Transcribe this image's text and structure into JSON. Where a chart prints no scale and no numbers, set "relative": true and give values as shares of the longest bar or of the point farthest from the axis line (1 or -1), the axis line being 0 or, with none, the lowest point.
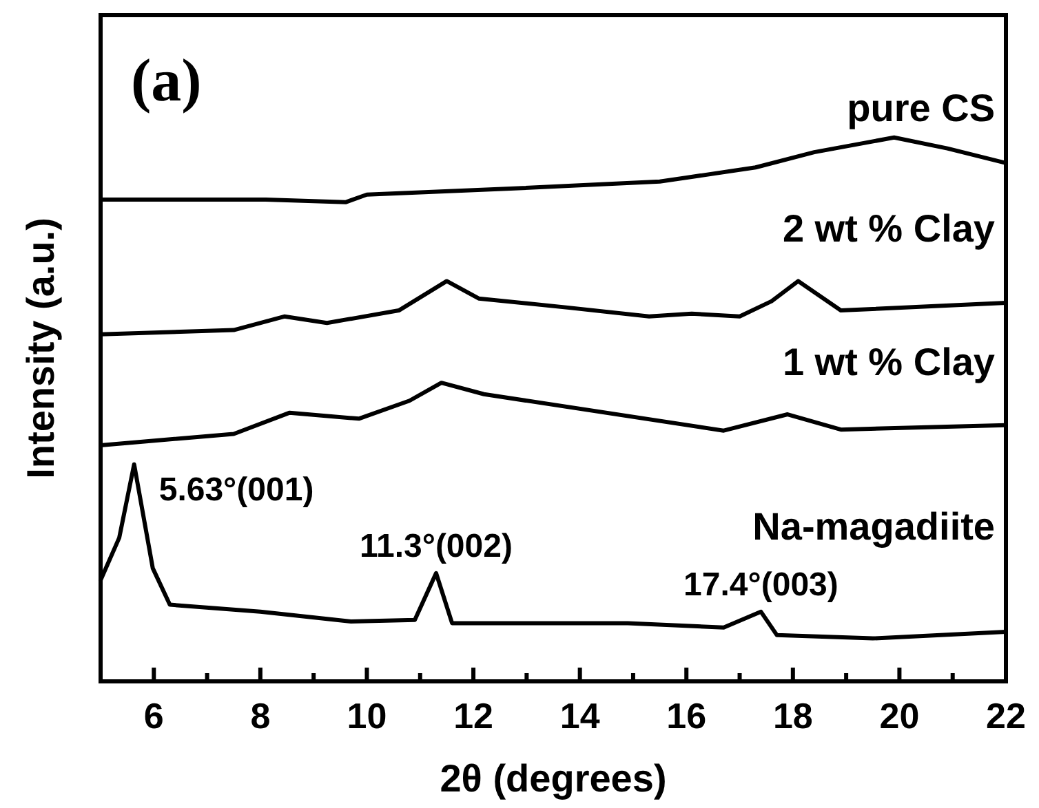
{
  "chart_data": {
    "type": "line",
    "relative": true,
    "xlabel": "2θ (degrees)",
    "ylabel": "Intensity (a.u.)",
    "xlim": [
      5,
      22
    ],
    "xticks": [
      {
        "value": 5,
        "label": null
      },
      6,
      {
        "value": 7,
        "label": null
      },
      8,
      {
        "value": 9,
        "label": null
      },
      10,
      {
        "value": 11,
        "label": null
      },
      12,
      {
        "value": 13,
        "label": null
      },
      14,
      {
        "value": 15,
        "label": null
      },
      16,
      {
        "value": 17,
        "label": null
      },
      18,
      {
        "value": 19,
        "label": null
      },
      20,
      {
        "value": 21,
        "label": null
      },
      22
    ],
    "marker": "none",
    "line_style": "solid",
    "series": [
      {
        "name": "pure CS",
        "color": "#000000",
        "x": [
          5,
          8.1,
          9.6,
          10.0,
          12.7,
          15.5,
          17.3,
          18.4,
          19.9,
          20.9,
          22
        ],
        "values": [
          0.886,
          0.886,
          0.881,
          0.895,
          0.906,
          0.919,
          0.945,
          0.973,
          1,
          0.98,
          0.953
        ]
      },
      {
        "name": "2 wt % Clay",
        "color": "#000000",
        "x": [
          5,
          7.5,
          8.45,
          9.25,
          10.6,
          11.5,
          12.1,
          13.8,
          15.3,
          16.1,
          17.0,
          17.6,
          18.1,
          18.9,
          22
        ],
        "values": [
          0.638,
          0.646,
          0.671,
          0.659,
          0.682,
          0.736,
          0.704,
          0.687,
          0.671,
          0.676,
          0.671,
          0.699,
          0.736,
          0.682,
          0.696
        ]
      },
      {
        "name": "1 wt % Clay",
        "color": "#000000",
        "x": [
          5,
          7.5,
          8.55,
          9.85,
          10.8,
          11.4,
          12.2,
          16.7,
          17.9,
          18.9,
          22
        ],
        "values": [
          0.434,
          0.455,
          0.494,
          0.483,
          0.516,
          0.549,
          0.528,
          0.461,
          0.491,
          0.463,
          0.471
        ]
      },
      {
        "name": "Na-magadiite",
        "color": "#000000",
        "x": [
          5,
          5.35,
          5.63,
          5.98,
          6.3,
          8.0,
          9.7,
          10.9,
          11.3,
          11.6,
          14.9,
          16.7,
          17.4,
          17.7,
          19.5,
          22
        ],
        "values": [
          0.186,
          0.264,
          0.399,
          0.208,
          0.141,
          0.128,
          0.11,
          0.113,
          0.199,
          0.107,
          0.107,
          0.099,
          0.128,
          0.085,
          0.079,
          0.091
        ]
      }
    ],
    "annotations": [
      "(a)",
      {
        "text": "5.63°(001)",
        "x": 5.63,
        "y": 0.399
      },
      {
        "text": "11.3°(002)",
        "x": 11.3,
        "y": 0.199
      },
      {
        "text": "17.4°(003)",
        "x": 17.4,
        "y": 0.128
      }
    ]
  }
}
